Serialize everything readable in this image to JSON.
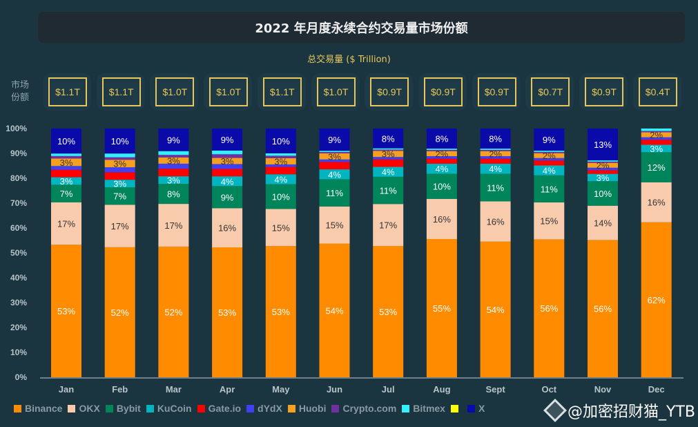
{
  "title": "2022 年月度永续合约交易量市场份额",
  "subtitle": "总交易量 ($ Trillion)",
  "side_label": "市场份额",
  "watermark": "@加密招财猫_YTB",
  "volumes": [
    "$1.1T",
    "$1.1T",
    "$1.0T",
    "$1.0T",
    "$1.1T",
    "$1.0T",
    "$0.9T",
    "$0.9T",
    "$0.9T",
    "$0.7T",
    "$0.9T",
    "$0.4T"
  ],
  "chart_data": {
    "type": "bar",
    "stacked": true,
    "percent": true,
    "title": "2022 年月度永续合约交易量市场份额",
    "categories": [
      "Jan",
      "Feb",
      "Mar",
      "Apr",
      "May",
      "Jun",
      "Jul",
      "Aug",
      "Sept",
      "Oct",
      "Nov",
      "Dec"
    ],
    "yticks": [
      "0%",
      "10%",
      "20%",
      "30%",
      "40%",
      "50%",
      "60%",
      "70%",
      "80%",
      "90%",
      "100%"
    ],
    "ylim": [
      0,
      100
    ],
    "legend_position": "bottom",
    "grid": false,
    "series": [
      {
        "name": "Binance",
        "color": "#ff8c00",
        "label_color": "#ffffff",
        "values": [
          53,
          52,
          52,
          53,
          53,
          54,
          53,
          55,
          54,
          56,
          56,
          62
        ],
        "labels": [
          "53%",
          "52%",
          "52%",
          "53%",
          "53%",
          "54%",
          "53%",
          "55%",
          "54%",
          "56%",
          "56%",
          "62%"
        ]
      },
      {
        "name": "OKX",
        "color": "#f8cbad",
        "label_color": "#333333",
        "values": [
          17,
          17,
          17,
          16,
          15,
          15,
          17,
          16,
          16,
          15,
          14,
          16
        ],
        "labels": [
          "17%",
          "17%",
          "17%",
          "16%",
          "15%",
          "15%",
          "17%",
          "16%",
          "16%",
          "15%",
          "14%",
          "16%"
        ]
      },
      {
        "name": "Bybit",
        "color": "#00845a",
        "label_color": "#ffffff",
        "values": [
          7,
          7,
          8,
          9,
          10,
          11,
          11,
          10,
          11,
          11,
          10,
          12
        ],
        "labels": [
          "7%",
          "7%",
          "8%",
          "9%",
          "10%",
          "11%",
          "11%",
          "10%",
          "11%",
          "11%",
          "10%",
          "12%"
        ]
      },
      {
        "name": "KuCoin",
        "color": "#00b5c0",
        "label_color": "#ffffff",
        "values": [
          3,
          3,
          3,
          4,
          4,
          4,
          4,
          4,
          4,
          4,
          3,
          3
        ],
        "labels": [
          "3%",
          "3%",
          "3%",
          "4%",
          "4%",
          "4%",
          "4%",
          "4%",
          "4%",
          "4%",
          "3%",
          "3%"
        ]
      },
      {
        "name": "Gate.io",
        "color": "#ff0000",
        "label_color": "#ffffff",
        "values": [
          3,
          3,
          3,
          3,
          3,
          3,
          3,
          2,
          2,
          2,
          1.5,
          2
        ],
        "labels": [
          null,
          null,
          null,
          null,
          null,
          null,
          null,
          null,
          null,
          null,
          null,
          null
        ]
      },
      {
        "name": "dYdX",
        "color": "#4040f0",
        "label_color": "#ffffff",
        "values": [
          1.5,
          2,
          2,
          2,
          1,
          1,
          1,
          1,
          1,
          1,
          1,
          1
        ],
        "labels": [
          null,
          null,
          null,
          null,
          null,
          null,
          null,
          null,
          null,
          null,
          null,
          null
        ]
      },
      {
        "name": "Huobi",
        "color": "#f5a020",
        "label_color": "#333333",
        "values": [
          3,
          3,
          2.5,
          2.5,
          2.5,
          2.5,
          2.5,
          2,
          2,
          2,
          2,
          2
        ],
        "labels": [
          "3%",
          "3%",
          "3%",
          "3%",
          "3%",
          "3%",
          "3%",
          "2%",
          "2%",
          "2%",
          "2%",
          "2%"
        ]
      },
      {
        "name": "Crypto.com",
        "color": "#7030a0",
        "label_color": "#ffffff",
        "values": [
          1,
          1,
          1,
          1.5,
          1,
          0.5,
          0.5,
          0.5,
          0.5,
          0.5,
          0.5,
          0.5
        ],
        "labels": [
          null,
          null,
          null,
          null,
          null,
          null,
          null,
          null,
          null,
          null,
          null,
          null
        ]
      },
      {
        "name": "Bitmex",
        "color": "#33f0ff",
        "label_color": "#333333",
        "values": [
          1,
          1.5,
          1.5,
          1.5,
          1,
          0.5,
          0.5,
          0.5,
          0.5,
          0.5,
          0.5,
          1
        ],
        "labels": [
          null,
          null,
          null,
          null,
          null,
          null,
          null,
          null,
          null,
          null,
          null,
          null
        ]
      },
      {
        "name": "",
        "color": "#ffff00",
        "label_color": "#333333",
        "values": [
          0,
          0,
          0,
          0,
          0,
          0,
          0,
          0,
          0,
          0,
          0,
          0
        ],
        "labels": [
          null,
          null,
          null,
          null,
          null,
          null,
          null,
          null,
          null,
          null,
          null,
          null
        ]
      },
      {
        "name": "X",
        "color": "#0a0aa8",
        "label_color": "#ffffff",
        "values": [
          10,
          10,
          9,
          9,
          10,
          9,
          8,
          8,
          8,
          9,
          13,
          0
        ],
        "labels": [
          "10%",
          "10%",
          "9%",
          "9%",
          "10%",
          "9%",
          "8%",
          "8%",
          "8%",
          "9%",
          "13%",
          null
        ]
      }
    ]
  }
}
